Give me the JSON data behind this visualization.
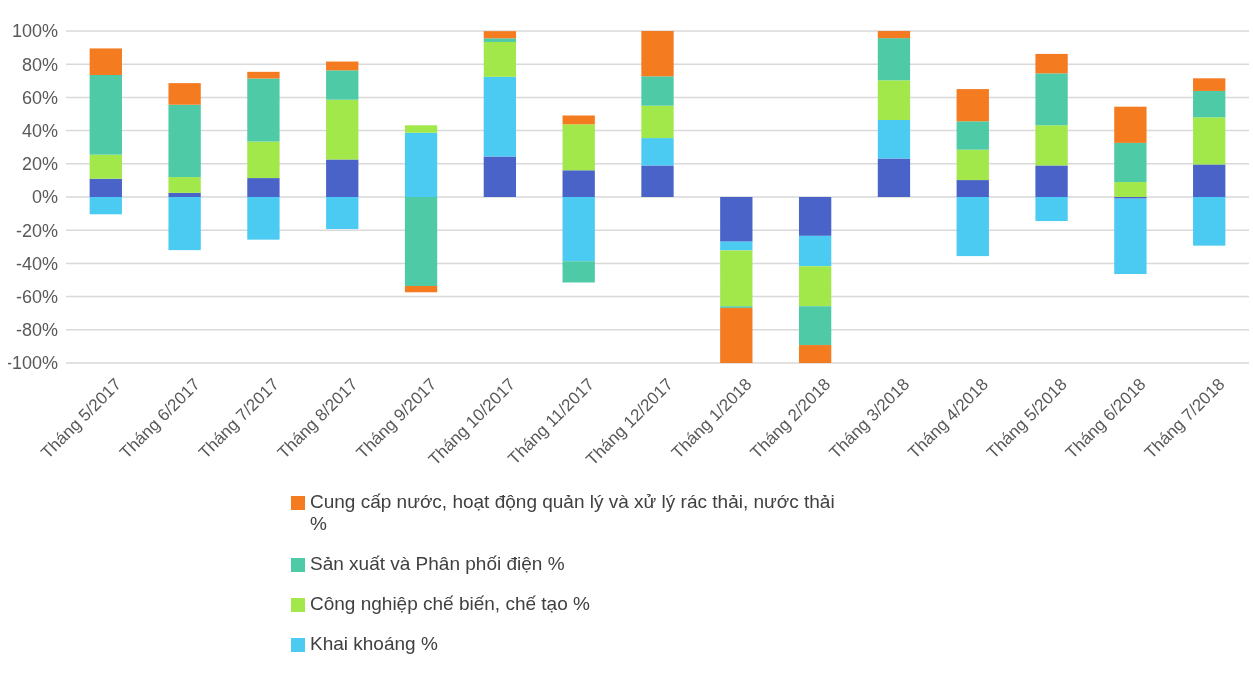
{
  "chart_data": {
    "type": "bar",
    "stacked": true,
    "categories": [
      "Tháng 5/2017",
      "Tháng 6/2017",
      "Tháng 7/2017",
      "Tháng 8/2017",
      "Tháng 9/2017",
      "Tháng 10/2017",
      "Tháng 11/2017",
      "Tháng 12/2017",
      "Tháng 1/2018",
      "Tháng 2/2018",
      "Tháng 3/2018",
      "Tháng 4/2018",
      "Tháng 5/2018",
      "Tháng 6/2018",
      "Tháng 7/2018"
    ],
    "series": [
      {
        "color": "#4a63c8",
        "values": [
          11,
          2.5,
          11.4,
          22.6,
          0,
          24.4,
          16.1,
          19,
          -26.9,
          -23.4,
          23.2,
          10.2,
          19,
          -1,
          19.6
        ]
      },
      {
        "name": "Khai khoáng %",
        "color": "#4ccbf2",
        "values": [
          -10.4,
          -32,
          -25.7,
          -19.3,
          38.7,
          48,
          -38.7,
          16.5,
          -5.3,
          -18.3,
          23.2,
          -35.6,
          -14.5,
          -45.4,
          -29.3
        ]
      },
      {
        "name": "Công nghiệp chế biến, chế tạo %",
        "color": "#a2e84a",
        "values": [
          14.5,
          9.5,
          22,
          36,
          4.5,
          21,
          27.7,
          19.5,
          -33.6,
          -24.1,
          23.9,
          18.3,
          24.2,
          9,
          28.4
        ]
      },
      {
        "name": "Sản xuất và Phân phối điện %",
        "color": "#4fcaa6",
        "values": [
          48,
          43.6,
          38,
          17.7,
          -53.6,
          2.2,
          -12.8,
          17.7,
          -1,
          -23.4,
          25.4,
          17.1,
          31.3,
          23.6,
          15.9
        ]
      },
      {
        "name": "Cung cấp nước, hoạt động quản lý và xử lý rác thải, nước thải %",
        "color": "#f47b20",
        "values": [
          16,
          13,
          4,
          5.3,
          -3.8,
          4.3,
          5.3,
          27.3,
          -33.2,
          -10.8,
          4.3,
          19.4,
          11.7,
          21.8,
          7.6
        ]
      }
    ],
    "ylim": [
      -100,
      100
    ],
    "yticks": [
      {
        "value": -100,
        "label": "-100%"
      },
      {
        "value": -80,
        "label": "-80%"
      },
      {
        "value": -60,
        "label": "-60%"
      },
      {
        "value": -40,
        "label": "-40%"
      },
      {
        "value": -20,
        "label": "-20%"
      },
      {
        "value": 0,
        "label": "0%"
      },
      {
        "value": 20,
        "label": "20%"
      },
      {
        "value": 40,
        "label": "40%"
      },
      {
        "value": 60,
        "label": "60%"
      },
      {
        "value": 80,
        "label": "80%"
      },
      {
        "value": 100,
        "label": "100%"
      }
    ],
    "grid": "y",
    "legend": "bottom"
  }
}
